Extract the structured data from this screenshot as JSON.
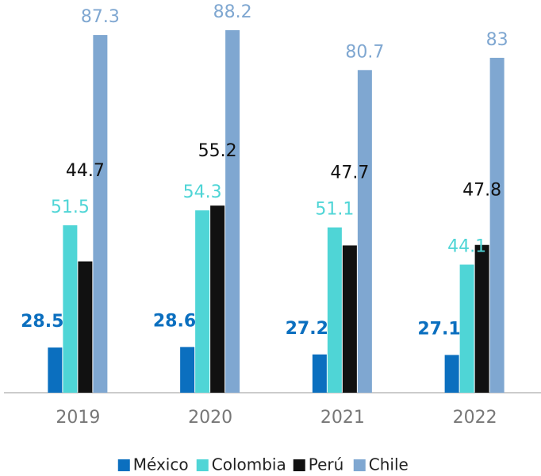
{
  "chart_data": {
    "type": "bar",
    "categories": [
      "2019",
      "2020",
      "2021",
      "2022"
    ],
    "series": [
      {
        "name": "México",
        "color": "#0b6fbf",
        "values": [
          28.5,
          28.6,
          27.2,
          27.1
        ]
      },
      {
        "name": "Colombia",
        "color": "#4fd5d6",
        "values": [
          51.5,
          54.3,
          51.1,
          44.1
        ]
      },
      {
        "name": "Perú",
        "color": "#111111",
        "values": [
          44.7,
          55.2,
          47.7,
          47.8
        ]
      },
      {
        "name": "Chile",
        "color": "#7fa7d1",
        "values": [
          87.3,
          88.2,
          80.7,
          83.0
        ]
      }
    ],
    "ylim": [
      20,
      90
    ],
    "legend": "bottom"
  }
}
